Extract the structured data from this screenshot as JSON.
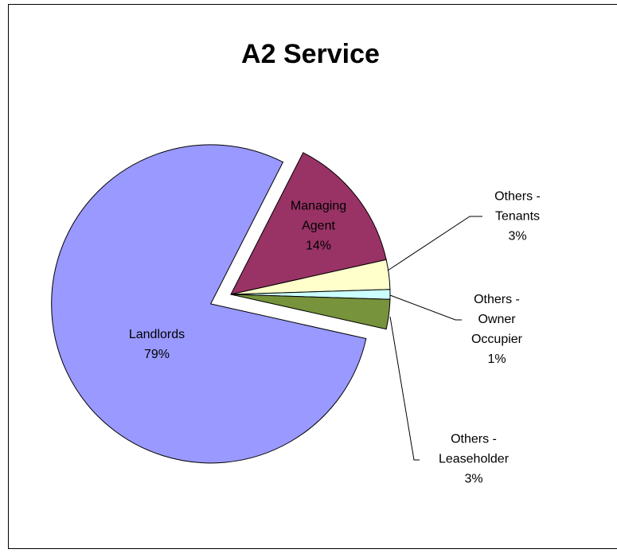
{
  "chart_data": {
    "type": "pie",
    "title": "A2 Service",
    "categories": [
      "Landlords",
      "Managing Agent",
      "Others - Tenants",
      "Others - Owner Occupier",
      "Others - Leaseholder"
    ],
    "values": [
      79,
      14,
      3,
      1,
      3
    ],
    "value_labels": [
      "79%",
      "14%",
      "3%",
      "1%",
      "3%"
    ],
    "colors": [
      "#9999ff",
      "#993366",
      "#ffffcc",
      "#ccffff",
      "#77933c"
    ]
  }
}
